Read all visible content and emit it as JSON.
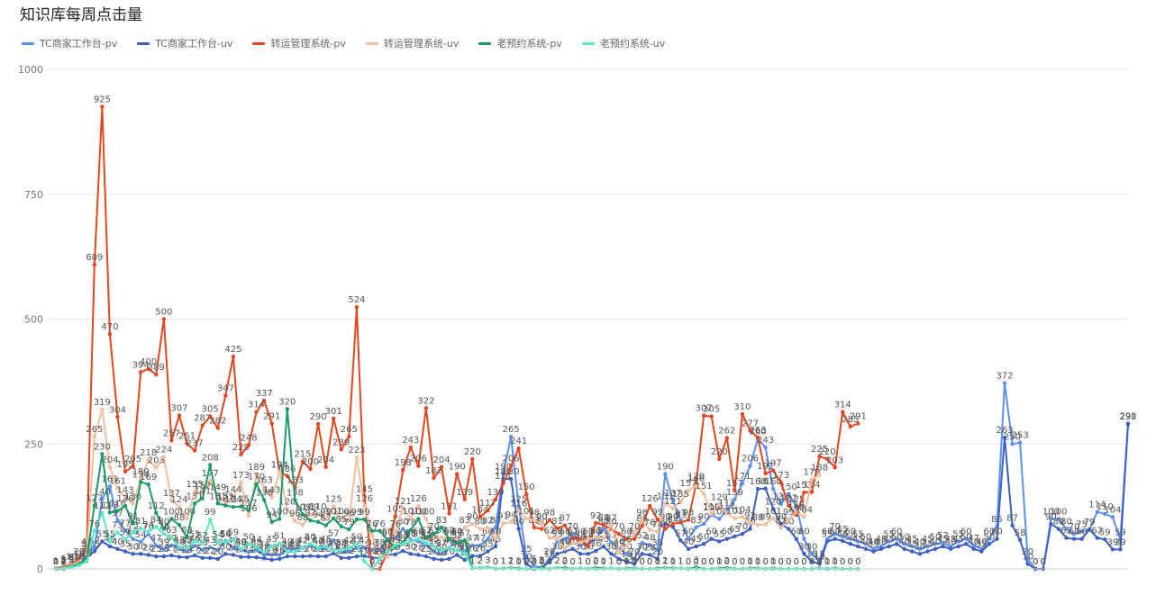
{
  "chart_data": {
    "type": "line",
    "title": "知识库每周点击量",
    "xlabel": "",
    "ylabel": "",
    "ylim": [
      0,
      1000
    ],
    "yticks": [
      0,
      250,
      500,
      750,
      1000
    ],
    "grid": true,
    "legend_position": "top-left",
    "series": [
      {
        "name": "TC商家工作台-pv",
        "color": "#5b8ff9",
        "values": [
          1,
          3,
          9,
          15,
          35,
          42,
          140,
          165,
          97,
          77,
          60,
          54,
          70,
          47,
          39,
          47,
          40,
          35,
          46,
          38,
          43,
          38,
          56,
          42,
          38,
          34,
          38,
          28,
          28,
          28,
          40,
          40,
          42,
          47,
          40,
          40,
          57,
          34,
          35,
          42,
          42,
          38,
          38,
          60,
          62,
          80,
          58,
          55,
          48,
          35,
          30,
          42,
          60,
          35,
          47,
          47,
          60,
          83,
          190,
          265,
          125,
          25,
          5,
          3,
          20,
          55,
          60,
          70,
          48,
          50,
          60,
          80,
          53,
          40,
          30,
          20,
          52,
          48,
          38,
          190,
          137,
          97,
          60,
          83,
          90,
          108,
          100,
          117,
          139,
          171,
          206,
          260,
          243,
          160,
          130,
          150,
          125,
          60,
          30,
          15,
          60,
          70,
          65,
          60,
          55,
          50,
          40,
          45,
          55,
          60,
          50,
          45,
          40,
          45,
          50,
          52,
          45,
          55,
          60,
          47,
          40,
          60,
          85,
          372,
          250,
          253,
          20,
          0,
          0,
          100,
          100,
          80,
          70,
          75,
          79,
          114,
          110,
          104,
          59,
          291
        ]
      },
      {
        "name": "TC商家工作台-uv",
        "color": "#3b5fc5",
        "values": [
          0,
          0,
          3,
          8,
          25,
          35,
          55,
          45,
          40,
          35,
          30,
          30,
          28,
          25,
          25,
          27,
          24,
          23,
          27,
          22,
          22,
          20,
          30,
          28,
          24,
          24,
          23,
          21,
          18,
          20,
          25,
          25,
          25,
          26,
          25,
          25,
          31,
          22,
          22,
          25,
          26,
          22,
          22,
          28,
          29,
          36,
          30,
          28,
          25,
          20,
          18,
          20,
          28,
          18,
          26,
          26,
          35,
          45,
          180,
          180,
          80,
          10,
          0,
          2,
          15,
          30,
          35,
          40,
          30,
          30,
          36,
          45,
          30,
          20,
          15,
          10,
          30,
          28,
          20,
          90,
          84,
          57,
          40,
          45,
          50,
          60,
          55,
          60,
          65,
          70,
          80,
          160,
          161,
          120,
          90,
          80,
          60,
          30,
          15,
          10,
          55,
          60,
          56,
          50,
          45,
          40,
          35,
          40,
          45,
          50,
          40,
          35,
          30,
          35,
          40,
          45,
          40,
          45,
          50,
          40,
          35,
          50,
          60,
          263,
          87,
          58,
          10,
          0,
          0,
          90,
          80,
          62,
          60,
          60,
          79,
          62,
          59,
          39,
          39,
          290
        ]
      },
      {
        "name": "转运管理系统-pv",
        "color": "#e8451e",
        "values": [
          1,
          5,
          10,
          20,
          40,
          609,
          925,
          470,
          304,
          195,
          205,
          394,
          400,
          389,
          500,
          257,
          307,
          251,
          237,
          287,
          305,
          282,
          347,
          425,
          229,
          248,
          314,
          337,
          291,
          194,
          186,
          163,
          215,
          200,
          290,
          204,
          301,
          239,
          265,
          524,
          145,
          0,
          0,
          35,
          105,
          198,
          243,
          206,
          322,
          182,
          204,
          111,
          190,
          139,
          220,
          104,
          117,
          139,
          171,
          206,
          241,
          150,
          83,
          80,
          98,
          81,
          87,
          61,
          60,
          45,
          92,
          88,
          80,
          70,
          60,
          60,
          86,
          126,
          99,
          80,
          90,
          93,
          98,
          170,
          307,
          305,
          220,
          262,
          157,
          310,
          277,
          263,
          191,
          197,
          173,
          127,
          108,
          153,
          154,
          225,
          220,
          203,
          314,
          285,
          291
        ]
      },
      {
        "name": "转运管理系统-uv",
        "color": "#f6bd9d",
        "values": [
          0,
          3,
          8,
          15,
          30,
          265,
          319,
          204,
          161,
          143,
          130,
          180,
          218,
          203,
          224,
          137,
          124,
          100,
          155,
          152,
          177,
          149,
          131,
          144,
          173,
          106,
          189,
          163,
          143,
          194,
          120,
          96,
          88,
          109,
          110,
          99,
          125,
          100,
          96,
          223,
          126,
          67,
          25,
          24,
          76,
          121,
          101,
          126,
          100,
          61,
          63,
          62,
          59,
          83,
          90,
          80,
          82,
          60,
          91,
          94,
          116,
          101,
          98,
          90,
          62,
          60,
          40,
          51,
          53,
          60,
          63,
          61,
          87,
          35,
          45,
          70,
          98,
          78,
          74,
          131,
          121,
          135,
          157,
          166,
          151,
          110,
          129,
          112,
          101,
          104,
          92,
          88,
          89,
          101,
          82,
          99,
          114,
          104,
          179,
          188
        ]
      },
      {
        "name": "老预约系统-pv",
        "color": "#1a9c68",
        "values": [
          0,
          2,
          5,
          10,
          20,
          127,
          230,
          113,
          116,
          126,
          91,
          174,
          169,
          112,
          80,
          100,
          88,
          63,
          131,
          141,
          208,
          131,
          127,
          124,
          125,
          117,
          170,
          138,
          94,
          100,
          320,
          138,
          109,
          97,
          94,
          87,
          101,
          85,
          79,
          99,
          99,
          76,
          76,
          57,
          43,
          53,
          78,
          100,
          62,
          70,
          83,
          59,
          52,
          57,
          1,
          2,
          3,
          0,
          1,
          2,
          1,
          0,
          0,
          2,
          0,
          2,
          2,
          0,
          1,
          0,
          2,
          1,
          1,
          0,
          1,
          1,
          0,
          0,
          1,
          2,
          1,
          1,
          0,
          3,
          0,
          0,
          1,
          2,
          0,
          0,
          1,
          1,
          0,
          1,
          0,
          0,
          0,
          0,
          0,
          1,
          0,
          1,
          0,
          0,
          0
        ]
      },
      {
        "name": "老预约系统-uv",
        "color": "#5ce8c8",
        "values": [
          0,
          1,
          3,
          7,
          15,
          76,
          112,
          55,
          73,
          59,
          73,
          81,
          74,
          84,
          70,
          63,
          43,
          43,
          55,
          52,
          99,
          54,
          54,
          59,
          40,
          50,
          44,
          34,
          45,
          51,
          34,
          34,
          42,
          50,
          42,
          45,
          37,
          38,
          42,
          50,
          15,
          0,
          20,
          35,
          48,
          50,
          55,
          60,
          52,
          45,
          37,
          42,
          37,
          31,
          1,
          2,
          3,
          0,
          1,
          1,
          0,
          0,
          1,
          0,
          0,
          2,
          0,
          0,
          1,
          0,
          0,
          0,
          1,
          0,
          0,
          0,
          0,
          0,
          0,
          1,
          0,
          1,
          0,
          0,
          0,
          0,
          0,
          0,
          0,
          0,
          0,
          0,
          0,
          0,
          0,
          0,
          0,
          0,
          0,
          0,
          1,
          0,
          0,
          0,
          0
        ]
      }
    ]
  }
}
